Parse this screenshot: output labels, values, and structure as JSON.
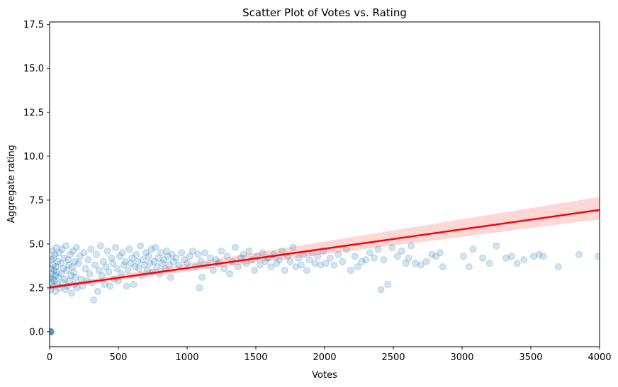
{
  "chart_data": {
    "type": "scatter",
    "title": "Scatter Plot of Votes vs. Rating",
    "xlabel": "Votes",
    "ylabel": "Aggregate rating",
    "xlim": [
      0,
      4000
    ],
    "ylim": [
      -0.85,
      17.65
    ],
    "x_ticks": [
      0,
      500,
      1000,
      1500,
      2000,
      2500,
      3000,
      3500,
      4000
    ],
    "y_ticks": [
      0.0,
      2.5,
      5.0,
      7.5,
      10.0,
      12.5,
      15.0,
      17.5
    ],
    "x_tick_labels": [
      "0",
      "500",
      "1000",
      "1500",
      "2000",
      "2500",
      "3000",
      "3500",
      "4000"
    ],
    "y_tick_labels": [
      "0.0",
      "2.5",
      "5.0",
      "7.5",
      "10.0",
      "12.5",
      "15.0",
      "17.5"
    ],
    "grid": false,
    "legend": "none",
    "series": [
      {
        "points": [
          [
            0,
            0
          ],
          [
            2,
            0
          ],
          [
            4,
            0
          ],
          [
            6,
            0
          ],
          [
            8,
            0
          ],
          [
            10,
            0
          ],
          [
            5,
            3.1
          ],
          [
            8,
            2.4
          ],
          [
            10,
            3.6
          ],
          [
            12,
            4.1
          ],
          [
            15,
            2.8
          ],
          [
            18,
            3.3
          ],
          [
            20,
            4.6
          ],
          [
            22,
            3.0
          ],
          [
            25,
            3.8
          ],
          [
            28,
            2.6
          ],
          [
            30,
            4.2
          ],
          [
            33,
            3.5
          ],
          [
            35,
            2.9
          ],
          [
            38,
            4.4
          ],
          [
            40,
            3.2
          ],
          [
            42,
            2.3
          ],
          [
            45,
            3.7
          ],
          [
            48,
            4.8
          ],
          [
            50,
            3.4
          ],
          [
            55,
            2.7
          ],
          [
            60,
            4.0
          ],
          [
            65,
            3.1
          ],
          [
            70,
            4.5
          ],
          [
            75,
            2.5
          ],
          [
            80,
            3.9
          ],
          [
            85,
            3.3
          ],
          [
            90,
            4.7
          ],
          [
            95,
            2.8
          ],
          [
            100,
            3.6
          ],
          [
            105,
            4.2
          ],
          [
            110,
            3.0
          ],
          [
            115,
            2.4
          ],
          [
            120,
            4.9
          ],
          [
            125,
            3.5
          ],
          [
            130,
            2.6
          ],
          [
            135,
            4.1
          ],
          [
            140,
            3.8
          ],
          [
            145,
            2.9
          ],
          [
            150,
            4.4
          ],
          [
            155,
            3.2
          ],
          [
            160,
            2.2
          ],
          [
            165,
            3.7
          ],
          [
            170,
            4.6
          ],
          [
            175,
            3.4
          ],
          [
            180,
            2.7
          ],
          [
            185,
            4.0
          ],
          [
            190,
            3.1
          ],
          [
            195,
            4.8
          ],
          [
            200,
            2.5
          ],
          [
            210,
            3.9
          ],
          [
            220,
            4.3
          ],
          [
            230,
            3.0
          ],
          [
            240,
            2.6
          ],
          [
            250,
            4.5
          ],
          [
            260,
            3.6
          ],
          [
            270,
            2.9
          ],
          [
            280,
            4.1
          ],
          [
            290,
            3.3
          ],
          [
            300,
            4.7
          ],
          [
            310,
            2.8
          ],
          [
            320,
            1.8
          ],
          [
            330,
            3.8
          ],
          [
            340,
            4.4
          ],
          [
            350,
            2.3
          ],
          [
            360,
            3.5
          ],
          [
            370,
            4.9
          ],
          [
            380,
            3.2
          ],
          [
            390,
            4.0
          ],
          [
            400,
            2.7
          ],
          [
            410,
            3.7
          ],
          [
            420,
            4.6
          ],
          [
            430,
            3.4
          ],
          [
            440,
            2.6
          ],
          [
            450,
            4.2
          ],
          [
            460,
            3.9
          ],
          [
            470,
            3.0
          ],
          [
            480,
            4.8
          ],
          [
            490,
            3.6
          ],
          [
            500,
            2.9
          ],
          [
            510,
            4.3
          ],
          [
            520,
            3.3
          ],
          [
            530,
            4.5
          ],
          [
            540,
            3.8
          ],
          [
            550,
            4.0
          ],
          [
            560,
            2.6
          ],
          [
            570,
            3.5
          ],
          [
            580,
            4.7
          ],
          [
            590,
            3.9
          ],
          [
            600,
            4.2
          ],
          [
            610,
            2.7
          ],
          [
            620,
            3.7
          ],
          [
            630,
            4.4
          ],
          [
            640,
            4.0
          ],
          [
            650,
            3.6
          ],
          [
            660,
            4.9
          ],
          [
            670,
            3.2
          ],
          [
            680,
            4.1
          ],
          [
            690,
            3.8
          ],
          [
            700,
            4.5
          ],
          [
            710,
            3.5
          ],
          [
            720,
            4.3
          ],
          [
            730,
            3.9
          ],
          [
            740,
            4.7
          ],
          [
            750,
            3.4
          ],
          [
            760,
            4.0
          ],
          [
            770,
            4.8
          ],
          [
            780,
            3.7
          ],
          [
            790,
            4.2
          ],
          [
            800,
            3.3
          ],
          [
            810,
            4.5
          ],
          [
            820,
            3.9
          ],
          [
            830,
            4.1
          ],
          [
            840,
            3.6
          ],
          [
            850,
            4.6
          ],
          [
            860,
            4.3
          ],
          [
            870,
            3.8
          ],
          [
            880,
            3.1
          ],
          [
            890,
            4.4
          ],
          [
            900,
            4.0
          ],
          [
            920,
            4.2
          ],
          [
            940,
            3.8
          ],
          [
            960,
            4.5
          ],
          [
            980,
            4.1
          ],
          [
            1000,
            3.9
          ],
          [
            1020,
            4.3
          ],
          [
            1040,
            4.6
          ],
          [
            1060,
            3.7
          ],
          [
            1080,
            4.4
          ],
          [
            1090,
            2.5
          ],
          [
            1100,
            4.0
          ],
          [
            1110,
            3.1
          ],
          [
            1130,
            4.5
          ],
          [
            1150,
            3.8
          ],
          [
            1170,
            4.2
          ],
          [
            1190,
            3.5
          ],
          [
            1210,
            4.1
          ],
          [
            1230,
            3.9
          ],
          [
            1250,
            4.6
          ],
          [
            1270,
            3.6
          ],
          [
            1290,
            4.3
          ],
          [
            1310,
            3.3
          ],
          [
            1330,
            4.0
          ],
          [
            1350,
            4.8
          ],
          [
            1370,
            3.7
          ],
          [
            1390,
            4.2
          ],
          [
            1410,
            4.4
          ],
          [
            1430,
            3.9
          ],
          [
            1450,
            4.6
          ],
          [
            1470,
            4.1
          ],
          [
            1490,
            3.5
          ],
          [
            1510,
            4.3
          ],
          [
            1530,
            3.8
          ],
          [
            1550,
            4.5
          ],
          [
            1570,
            4.0
          ],
          [
            1590,
            4.2
          ],
          [
            1610,
            3.7
          ],
          [
            1630,
            4.4
          ],
          [
            1650,
            3.9
          ],
          [
            1670,
            4.1
          ],
          [
            1690,
            4.6
          ],
          [
            1710,
            3.5
          ],
          [
            1730,
            4.3
          ],
          [
            1750,
            4.0
          ],
          [
            1770,
            4.8
          ],
          [
            1790,
            3.7
          ],
          [
            1810,
            4.2
          ],
          [
            1830,
            3.8
          ],
          [
            1850,
            4.4
          ],
          [
            1870,
            3.5
          ],
          [
            1890,
            4.1
          ],
          [
            1910,
            4.5
          ],
          [
            1930,
            3.9
          ],
          [
            1950,
            4.3
          ],
          [
            1970,
            3.8
          ],
          [
            1990,
            4.6
          ],
          [
            2010,
            3.9
          ],
          [
            2040,
            4.2
          ],
          [
            2070,
            3.8
          ],
          [
            2100,
            4.4
          ],
          [
            2130,
            4.0
          ],
          [
            2160,
            4.7
          ],
          [
            2190,
            3.5
          ],
          [
            2220,
            4.3
          ],
          [
            2240,
            3.7
          ],
          [
            2270,
            4.0
          ],
          [
            2300,
            4.1
          ],
          [
            2330,
            4.5
          ],
          [
            2360,
            4.2
          ],
          [
            2390,
            4.7
          ],
          [
            2410,
            2.4
          ],
          [
            2430,
            4.1
          ],
          [
            2460,
            2.7
          ],
          [
            2490,
            4.8
          ],
          [
            2530,
            4.3
          ],
          [
            2560,
            4.6
          ],
          [
            2590,
            3.9
          ],
          [
            2610,
            4.2
          ],
          [
            2630,
            4.9
          ],
          [
            2660,
            3.9
          ],
          [
            2700,
            3.8
          ],
          [
            2740,
            4.0
          ],
          [
            2780,
            4.4
          ],
          [
            2810,
            4.3
          ],
          [
            2840,
            4.5
          ],
          [
            2860,
            3.7
          ],
          [
            3010,
            4.3
          ],
          [
            3050,
            3.7
          ],
          [
            3080,
            4.7
          ],
          [
            3150,
            4.2
          ],
          [
            3200,
            3.9
          ],
          [
            3250,
            4.9
          ],
          [
            3320,
            4.2
          ],
          [
            3360,
            4.3
          ],
          [
            3400,
            3.9
          ],
          [
            3450,
            4.1
          ],
          [
            3520,
            4.3
          ],
          [
            3560,
            4.4
          ],
          [
            3590,
            4.3
          ],
          [
            3700,
            3.7
          ],
          [
            3850,
            4.4
          ],
          [
            3990,
            4.3
          ]
        ]
      }
    ],
    "regression": {
      "x": [
        0,
        4000
      ],
      "y": [
        2.52,
        6.94
      ],
      "ci_lower": [
        2.44,
        6.4
      ],
      "ci_upper": [
        2.6,
        7.68
      ]
    },
    "colors": {
      "points": "#1f77b4",
      "regression_line": "#ff0000",
      "confidence_band": "#ff9a9a"
    }
  }
}
